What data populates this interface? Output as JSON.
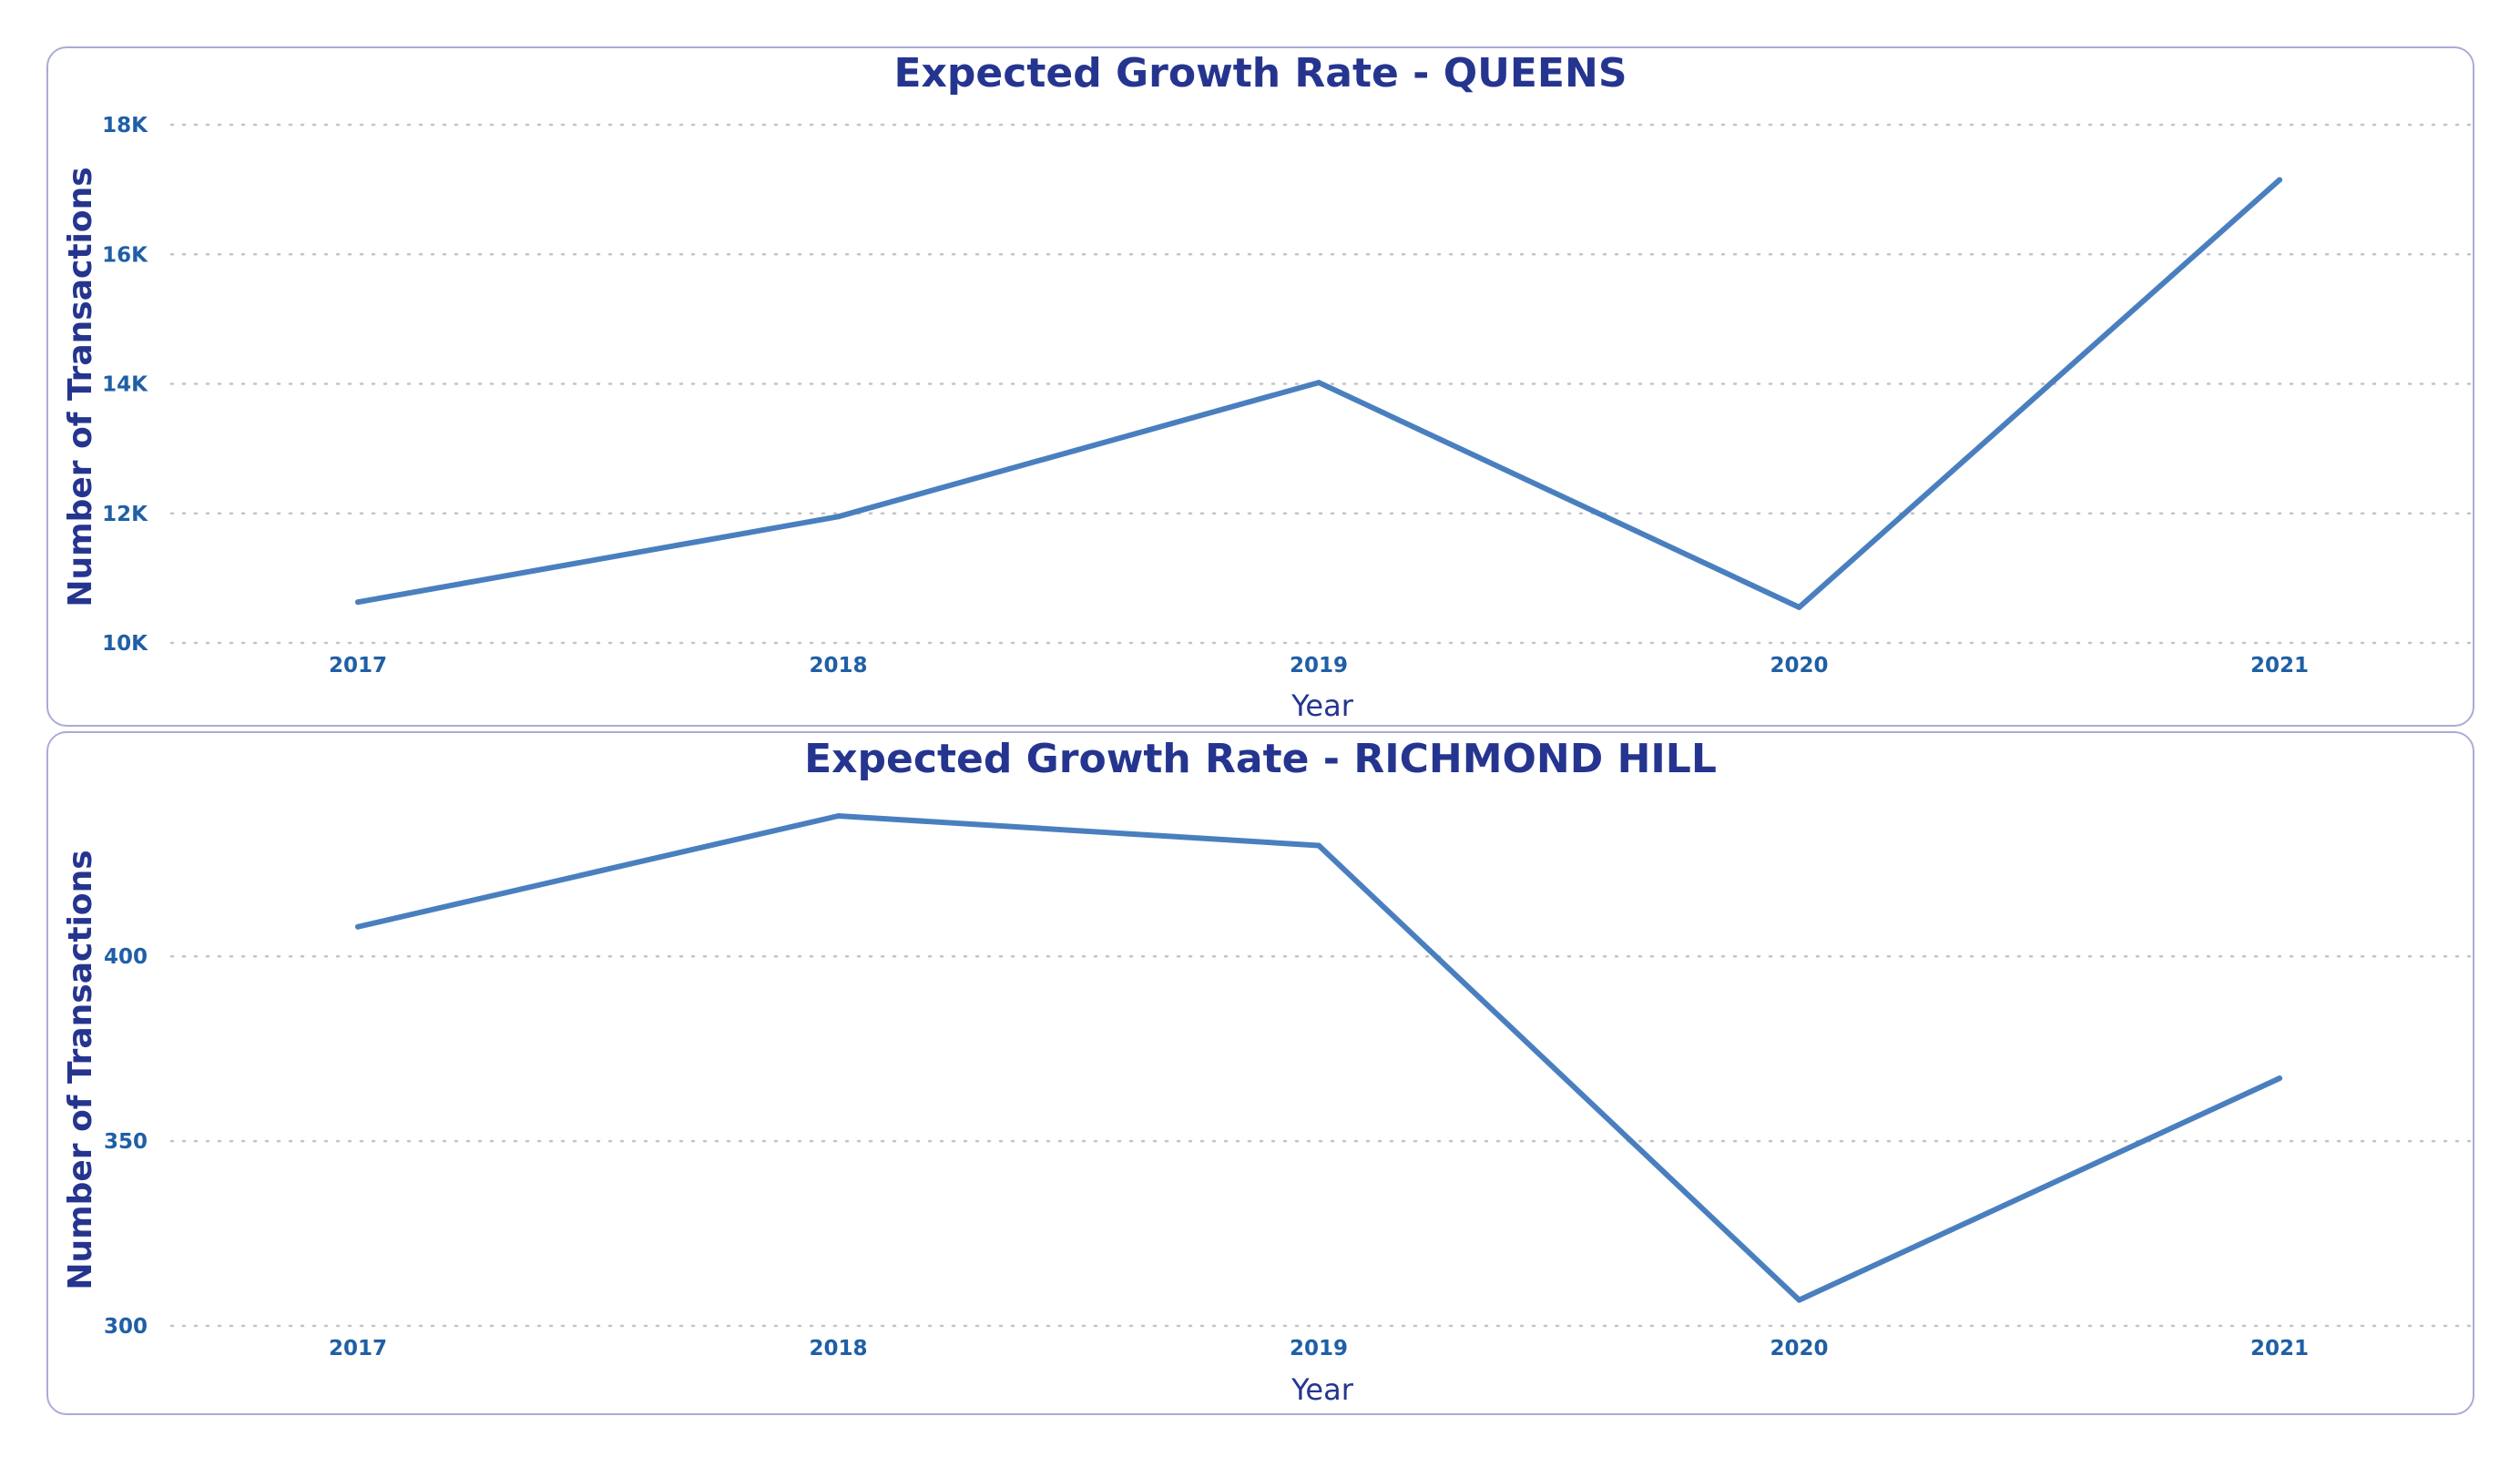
{
  "colors": {
    "title": "#25358f",
    "tick": "#1f5fa6",
    "line": "#4a7fbf",
    "grid": "#c4c4c4",
    "panel_border": "#a9acd6"
  },
  "chart_data": [
    {
      "type": "line",
      "title": "Expected Growth Rate - QUEENS",
      "xlabel": "Year",
      "ylabel": "Number of Transactions",
      "categories": [
        "2017",
        "2018",
        "2019",
        "2020",
        "2021"
      ],
      "values": [
        10630,
        11950,
        14020,
        10550,
        17150
      ],
      "ylim": [
        10000,
        18000
      ],
      "yticks": [
        10000,
        12000,
        14000,
        16000,
        18000
      ],
      "ytick_labels": [
        "10K",
        "12K",
        "14K",
        "16K",
        "18K"
      ],
      "grid": true,
      "legend": "none"
    },
    {
      "type": "line",
      "title": "Expected Growth Rate - RICHMOND HILL",
      "xlabel": "Year",
      "ylabel": "Number of Transactions",
      "categories": [
        "2017",
        "2018",
        "2019",
        "2020",
        "2021"
      ],
      "values": [
        408,
        438,
        430,
        307,
        367
      ],
      "ylim": [
        300,
        438
      ],
      "yticks": [
        300,
        350,
        400
      ],
      "ytick_labels": [
        "300",
        "350",
        "400"
      ],
      "grid": true,
      "legend": "none"
    }
  ]
}
